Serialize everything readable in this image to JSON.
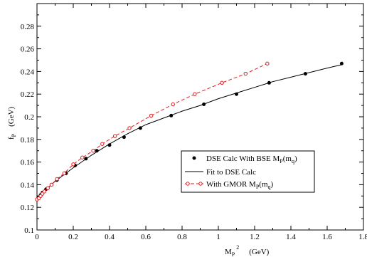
{
  "chart_data": {
    "type": "scatter",
    "xlabel": "M",
    "xlabel_sub": "P",
    "xlabel_sup": "2",
    "xlabel_unit": "(GeV)",
    "ylabel": "f",
    "ylabel_sub": "P",
    "ylabel_unit": "(GeV)",
    "xlim": [
      0,
      1.8
    ],
    "ylim": [
      0.1,
      0.3
    ],
    "x_ticks": [
      "0",
      "0.2",
      "0.4",
      "0.6",
      "0.8",
      "1",
      "1.2",
      "1.4",
      "1.6",
      "1.8"
    ],
    "y_ticks": [
      "0.1",
      "0.12",
      "0.14",
      "0.16",
      "0.18",
      "0.2",
      "0.22",
      "0.24",
      "0.26",
      "0.28"
    ],
    "grid": false,
    "legend_position": "center-right",
    "series": [
      {
        "name": "DSE Calc With BSE M",
        "name_sub": "P",
        "name_tail": "(m",
        "name_sub2": "q",
        "name_end": ")",
        "style": "filled-dot",
        "color": "#000000",
        "x": [
          0.0,
          0.01,
          0.02,
          0.03,
          0.05,
          0.08,
          0.11,
          0.16,
          0.21,
          0.27,
          0.33,
          0.4,
          0.48,
          0.57,
          0.74,
          0.92,
          1.1,
          1.28,
          1.48,
          1.68
        ],
        "y": [
          0.127,
          0.129,
          0.131,
          0.133,
          0.136,
          0.14,
          0.144,
          0.15,
          0.157,
          0.163,
          0.17,
          0.175,
          0.182,
          0.19,
          0.201,
          0.211,
          0.22,
          0.23,
          0.238,
          0.247
        ]
      },
      {
        "name": "Fit to DSE Calc",
        "style": "solid-line",
        "color": "#000000",
        "x": [
          0.0,
          0.02,
          0.05,
          0.1,
          0.15,
          0.2,
          0.3,
          0.4,
          0.5,
          0.6,
          0.7,
          0.8,
          0.9,
          1.0,
          1.1,
          1.2,
          1.3,
          1.4,
          1.5,
          1.6,
          1.68
        ],
        "y": [
          0.127,
          0.131,
          0.136,
          0.143,
          0.149,
          0.155,
          0.166,
          0.176,
          0.185,
          0.193,
          0.199,
          0.205,
          0.21,
          0.216,
          0.221,
          0.226,
          0.231,
          0.235,
          0.239,
          0.243,
          0.246
        ]
      },
      {
        "name": "With GMOR M",
        "name_sub": "P",
        "name_tail": "(m",
        "name_sub2": "q",
        "name_end": ")",
        "style": "dashed-open-circle",
        "color": "#e8191c",
        "x": [
          0.0,
          0.01,
          0.02,
          0.03,
          0.04,
          0.06,
          0.08,
          0.11,
          0.15,
          0.2,
          0.25,
          0.31,
          0.36,
          0.43,
          0.51,
          0.63,
          0.75,
          0.87,
          1.02,
          1.15,
          1.27
        ],
        "y": [
          0.127,
          0.128,
          0.13,
          0.132,
          0.134,
          0.137,
          0.14,
          0.145,
          0.15,
          0.158,
          0.164,
          0.17,
          0.176,
          0.183,
          0.19,
          0.201,
          0.211,
          0.22,
          0.23,
          0.238,
          0.247
        ]
      }
    ]
  }
}
